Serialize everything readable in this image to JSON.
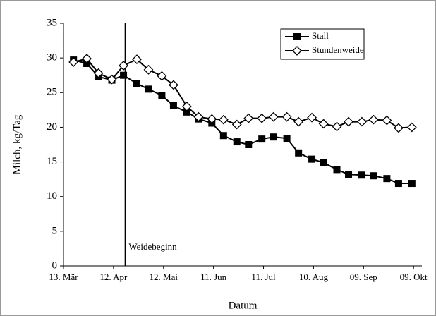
{
  "chart_data": {
    "type": "line",
    "x_label": "Datum",
    "y_label": "Milch, kg/Tag",
    "x": [
      6,
      14,
      21,
      29,
      36,
      44,
      51,
      59,
      66,
      74,
      81,
      89,
      96,
      104,
      111,
      119,
      126,
      134,
      141,
      149,
      156,
      164,
      171,
      179,
      186,
      194,
      201,
      209
    ],
    "series": [
      {
        "name": "Stall",
        "color": "#000000",
        "marker": "square",
        "values": [
          29.7,
          29.2,
          27.3,
          26.8,
          27.5,
          26.3,
          25.5,
          24.6,
          23.1,
          22.2,
          21.2,
          20.6,
          18.8,
          17.9,
          17.5,
          18.3,
          18.6,
          18.4,
          16.3,
          15.4,
          14.9,
          13.9,
          13.2,
          13.1,
          13.0,
          12.6,
          11.9,
          11.9
        ]
      },
      {
        "name": "Stundenweide",
        "color": "#000000",
        "marker": "diamond",
        "values": [
          29.4,
          29.9,
          27.8,
          26.9,
          28.9,
          29.8,
          28.3,
          27.4,
          26.1,
          23.0,
          21.5,
          21.2,
          21.1,
          20.4,
          21.3,
          21.3,
          21.5,
          21.5,
          20.8,
          21.4,
          20.5,
          20.1,
          20.8,
          20.8,
          21.1,
          21.0,
          19.9,
          20.0
        ]
      }
    ],
    "xlim": [
      0,
      215
    ],
    "xticks": [
      {
        "value": 0,
        "label": "13. Mär"
      },
      {
        "value": 30,
        "label": "12. Apr"
      },
      {
        "value": 60,
        "label": "12. Mai"
      },
      {
        "value": 90,
        "label": "11. Jun"
      },
      {
        "value": 120,
        "label": "11. Jul"
      },
      {
        "value": 150,
        "label": "10. Aug"
      },
      {
        "value": 180,
        "label": "09. Sep"
      },
      {
        "value": 210,
        "label": "09. Okt"
      }
    ],
    "ylim": [
      0,
      35
    ],
    "yticks": [
      0,
      5,
      10,
      15,
      20,
      25,
      30,
      35
    ],
    "annotations": [
      {
        "text": "Weidebeginn",
        "x": 37
      }
    ],
    "legend": "top-right",
    "grid": false
  }
}
